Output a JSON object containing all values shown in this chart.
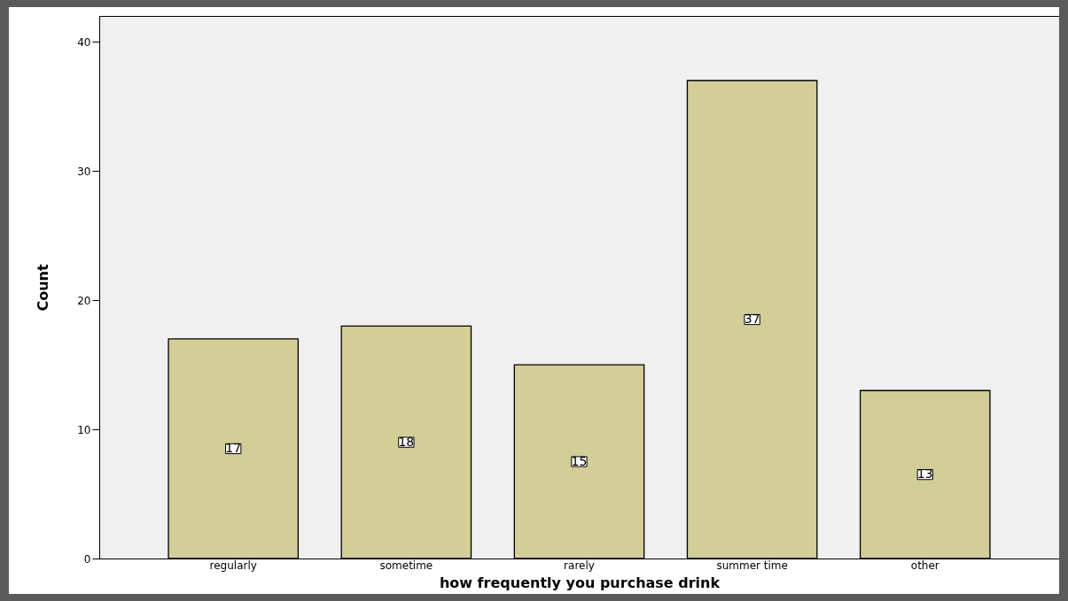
{
  "chart_data": {
    "type": "bar",
    "xlabel": "how frequently you purchase drink",
    "ylabel": "Count",
    "categories": [
      "regularly",
      "sometime",
      "rarely",
      "summer time",
      "other"
    ],
    "values": [
      17,
      18,
      15,
      37,
      13
    ],
    "color": "#d3ce97",
    "ylim": [
      0,
      42
    ],
    "yticks": [
      0,
      10,
      20,
      30,
      40
    ],
    "grid": false,
    "data_labels": true
  }
}
